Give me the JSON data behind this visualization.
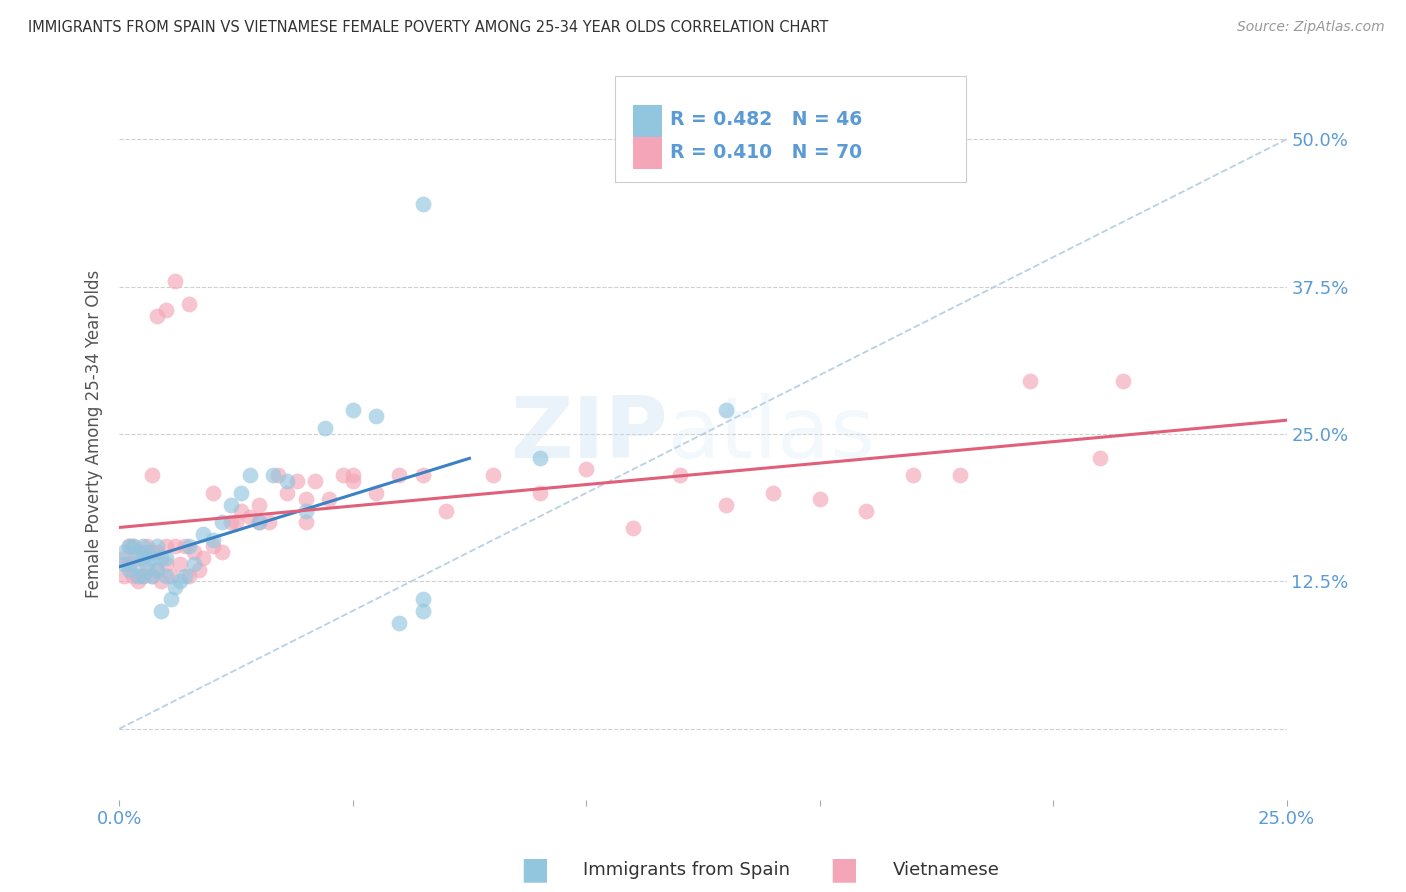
{
  "title": "IMMIGRANTS FROM SPAIN VS VIETNAMESE FEMALE POVERTY AMONG 25-34 YEAR OLDS CORRELATION CHART",
  "source": "Source: ZipAtlas.com",
  "ylabel": "Female Poverty Among 25-34 Year Olds",
  "legend_label_1": "Immigrants from Spain",
  "legend_label_2": "Vietnamese",
  "r1": "0.482",
  "n1": "46",
  "r2": "0.410",
  "n2": "70",
  "xlim": [
    0.0,
    0.25
  ],
  "ylim": [
    -0.06,
    0.56
  ],
  "color_blue": "#92c5de",
  "color_pink": "#f4a6b8",
  "color_blue_line": "#3b82c4",
  "color_pink_line": "#e0607a",
  "color_dashed": "#aec8e0",
  "watermark_zip": "ZIP",
  "watermark_atlas": "atlas",
  "background_color": "#ffffff",
  "axis_label_color": "#5b9bd5",
  "spain_x": [
    0.001,
    0.001,
    0.002,
    0.002,
    0.003,
    0.003,
    0.004,
    0.004,
    0.005,
    0.005,
    0.005,
    0.006,
    0.006,
    0.007,
    0.007,
    0.008,
    0.008,
    0.009,
    0.009,
    0.01,
    0.01,
    0.011,
    0.012,
    0.013,
    0.014,
    0.015,
    0.016,
    0.018,
    0.02,
    0.022,
    0.024,
    0.026,
    0.028,
    0.03,
    0.033,
    0.036,
    0.04,
    0.044,
    0.05,
    0.055,
    0.06,
    0.065,
    0.065,
    0.09,
    0.13,
    0.065
  ],
  "spain_y": [
    0.14,
    0.15,
    0.135,
    0.155,
    0.14,
    0.155,
    0.13,
    0.15,
    0.13,
    0.145,
    0.155,
    0.14,
    0.15,
    0.13,
    0.145,
    0.135,
    0.155,
    0.145,
    0.1,
    0.13,
    0.145,
    0.11,
    0.12,
    0.125,
    0.13,
    0.155,
    0.14,
    0.165,
    0.16,
    0.175,
    0.19,
    0.2,
    0.215,
    0.175,
    0.215,
    0.21,
    0.185,
    0.255,
    0.27,
    0.265,
    0.09,
    0.1,
    0.11,
    0.23,
    0.27,
    0.445
  ],
  "vietnam_x": [
    0.001,
    0.001,
    0.002,
    0.002,
    0.003,
    0.003,
    0.004,
    0.004,
    0.005,
    0.005,
    0.006,
    0.006,
    0.007,
    0.007,
    0.008,
    0.008,
    0.009,
    0.01,
    0.01,
    0.011,
    0.012,
    0.013,
    0.014,
    0.015,
    0.016,
    0.017,
    0.018,
    0.02,
    0.022,
    0.024,
    0.026,
    0.028,
    0.03,
    0.032,
    0.034,
    0.036,
    0.038,
    0.04,
    0.042,
    0.045,
    0.048,
    0.05,
    0.055,
    0.06,
    0.065,
    0.07,
    0.08,
    0.09,
    0.1,
    0.11,
    0.12,
    0.13,
    0.14,
    0.15,
    0.16,
    0.17,
    0.18,
    0.195,
    0.21,
    0.215,
    0.008,
    0.01,
    0.012,
    0.015,
    0.02,
    0.025,
    0.03,
    0.05,
    0.007,
    0.04
  ],
  "vietnam_y": [
    0.13,
    0.145,
    0.14,
    0.155,
    0.13,
    0.155,
    0.125,
    0.145,
    0.13,
    0.15,
    0.135,
    0.155,
    0.13,
    0.15,
    0.135,
    0.15,
    0.125,
    0.14,
    0.155,
    0.13,
    0.155,
    0.14,
    0.155,
    0.13,
    0.15,
    0.135,
    0.145,
    0.155,
    0.15,
    0.175,
    0.185,
    0.18,
    0.19,
    0.175,
    0.215,
    0.2,
    0.21,
    0.195,
    0.21,
    0.195,
    0.215,
    0.215,
    0.2,
    0.215,
    0.215,
    0.185,
    0.215,
    0.2,
    0.22,
    0.17,
    0.215,
    0.19,
    0.2,
    0.195,
    0.185,
    0.215,
    0.215,
    0.295,
    0.23,
    0.295,
    0.35,
    0.355,
    0.38,
    0.36,
    0.2,
    0.175,
    0.175,
    0.21,
    0.215,
    0.175
  ],
  "blue_line_x0": 0.0,
  "blue_line_y0": 0.135,
  "blue_line_x1": 0.075,
  "blue_line_y1": 0.27,
  "pink_line_x0": 0.0,
  "pink_line_y0": 0.215,
  "pink_line_x1": 0.25,
  "pink_line_y1": 0.32
}
